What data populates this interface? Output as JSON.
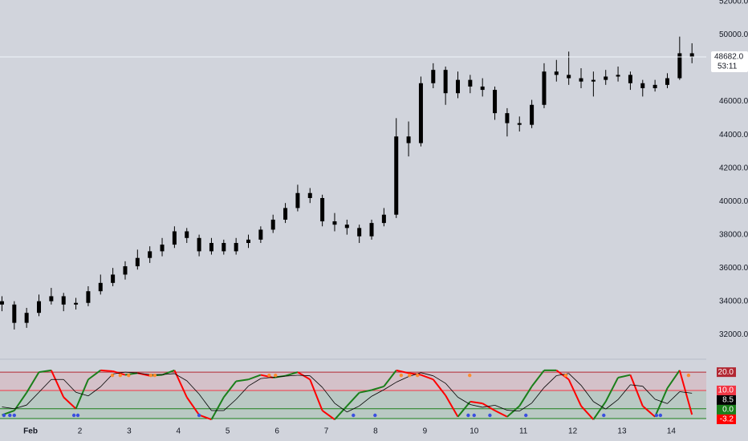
{
  "chart_data": [
    {
      "type": "candlestick",
      "x": [
        0.42,
        0.67,
        0.92,
        1.17,
        1.42,
        1.67,
        1.92,
        2.17,
        2.42,
        2.67,
        2.92,
        3.17,
        3.42,
        3.67,
        3.92,
        4.17,
        4.42,
        4.67,
        4.92,
        5.17,
        5.42,
        5.67,
        5.92,
        6.17,
        6.42,
        6.67,
        6.92,
        7.17,
        7.42,
        7.67,
        7.92,
        8.17,
        8.42,
        8.67,
        8.92,
        9.17,
        9.42,
        9.67,
        9.92,
        10.17,
        10.42,
        10.67,
        10.92,
        11.17,
        11.42,
        11.67,
        11.92,
        12.17,
        12.42,
        12.67,
        12.92,
        13.17,
        13.42,
        13.67,
        13.92,
        14.17,
        14.42
      ],
      "open": [
        34000,
        33800,
        32700,
        33300,
        34000,
        34300,
        33800,
        33900,
        34600,
        35100,
        35600,
        36100,
        36600,
        37000,
        37400,
        38200,
        37800,
        37000,
        37500,
        37000,
        37500,
        37700,
        38300,
        38900,
        39600,
        40500,
        40200,
        38800,
        38600,
        38400,
        37900,
        38700,
        39200,
        43900,
        43500,
        47100,
        47900,
        46500,
        47300,
        46900,
        46700,
        45300,
        44700,
        44600,
        45800,
        47800,
        47600,
        47400,
        47200,
        47300,
        47500,
        47600,
        47100,
        46800,
        47000,
        47400,
        48900
      ],
      "high": [
        34300,
        34000,
        33600,
        34400,
        34800,
        34500,
        34200,
        34900,
        35600,
        36000,
        36400,
        37100,
        37300,
        37800,
        38500,
        38400,
        38000,
        37800,
        37700,
        37800,
        38000,
        38500,
        39200,
        39900,
        41000,
        40800,
        40400,
        39300,
        38900,
        38600,
        38900,
        39600,
        45000,
        44800,
        47500,
        48300,
        48100,
        47800,
        47600,
        47400,
        46900,
        45600,
        45100,
        46100,
        48300,
        48500,
        49000,
        48000,
        47800,
        47900,
        48100,
        47800,
        47300,
        47300,
        47700,
        49900,
        49500
      ],
      "low": [
        33400,
        32300,
        32400,
        33100,
        33800,
        33400,
        33500,
        33700,
        34400,
        34900,
        35300,
        35900,
        36300,
        36700,
        37200,
        37500,
        36700,
        36800,
        36800,
        36800,
        37200,
        37500,
        38100,
        38700,
        39400,
        39900,
        38500,
        38200,
        38000,
        37500,
        37700,
        38500,
        39000,
        42700,
        43300,
        46800,
        45800,
        46200,
        46500,
        46300,
        44900,
        43900,
        44200,
        44400,
        45600,
        47200,
        47000,
        46800,
        46300,
        47000,
        47200,
        46700,
        46300,
        46600,
        46800,
        47300,
        48300
      ],
      "close": [
        33800,
        32700,
        33300,
        34000,
        34300,
        33800,
        33900,
        34600,
        35100,
        35600,
        36100,
        36600,
        37000,
        37400,
        38200,
        37800,
        37000,
        37500,
        37000,
        37500,
        37700,
        38300,
        38900,
        39600,
        40500,
        40200,
        38800,
        38600,
        38400,
        37900,
        38700,
        39200,
        43900,
        43500,
        47100,
        47900,
        46500,
        47300,
        46900,
        46700,
        45300,
        44700,
        44600,
        45800,
        47800,
        47600,
        47400,
        47200,
        47300,
        47500,
        47600,
        47100,
        46800,
        47000,
        47400,
        48900,
        48682
      ],
      "color": "#000000",
      "xlim": [
        0.38,
        14.71
      ],
      "ylim": [
        30900,
        52100
      ],
      "yticks": [
        {
          "value": 32000,
          "label": "32000.0"
        },
        {
          "value": 34000,
          "label": "34000.0"
        },
        {
          "value": 36000,
          "label": "36000.0"
        },
        {
          "value": 38000,
          "label": "38000.0"
        },
        {
          "value": 40000,
          "label": "40000.0"
        },
        {
          "value": 42000,
          "label": "42000.0"
        },
        {
          "value": 44000,
          "label": "44000.0"
        },
        {
          "value": 46000,
          "label": "46000.0"
        },
        {
          "value": 48000,
          "label": "48000.0"
        },
        {
          "value": 50000,
          "label": "50000.0"
        },
        {
          "value": 52000,
          "label": "52000.0"
        }
      ],
      "xticks": [
        {
          "value": 1,
          "label": "Feb"
        },
        2,
        3,
        4,
        5,
        6,
        7,
        8,
        9,
        10,
        11,
        12,
        13,
        14
      ],
      "last_price": {
        "value": 48682,
        "label": "48682.0"
      },
      "countdown": "53:11"
    },
    {
      "type": "line",
      "x": [
        0.42,
        0.67,
        0.92,
        1.17,
        1.42,
        1.67,
        1.92,
        2.17,
        2.42,
        2.67,
        2.92,
        3.17,
        3.42,
        3.67,
        3.92,
        4.17,
        4.42,
        4.67,
        4.92,
        5.17,
        5.42,
        5.67,
        5.92,
        6.17,
        6.42,
        6.67,
        6.92,
        7.17,
        7.42,
        7.67,
        7.92,
        8.17,
        8.42,
        8.67,
        8.92,
        9.17,
        9.42,
        9.67,
        9.92,
        10.17,
        10.42,
        10.67,
        10.92,
        11.17,
        11.42,
        11.67,
        11.92,
        12.17,
        12.42,
        12.67,
        12.92,
        13.17,
        13.42,
        13.67,
        13.92,
        14.17,
        14.42
      ],
      "series": [
        {
          "color": "#ff0000",
          "up_color": "#1a7f1a",
          "down_color": "#ff0000",
          "values": [
            -3.4,
            -1,
            8.8,
            20,
            21,
            6.3,
            0,
            16,
            21,
            20.5,
            18.5,
            19.5,
            18,
            18.5,
            21,
            6.3,
            -3.4,
            -5.9,
            6.3,
            15,
            16,
            18.5,
            17,
            18,
            20,
            16,
            -1,
            -5.9,
            1.5,
            8.8,
            10.2,
            12.2,
            21,
            19.5,
            18.5,
            16,
            7.3,
            -4.4,
            3.9,
            2.9,
            -1,
            -4.4,
            1.5,
            12.2,
            21,
            21,
            16,
            1.5,
            -5.9,
            3.9,
            17,
            18.5,
            1.5,
            -4.4,
            11.2,
            21,
            -3.2
          ]
        },
        {
          "color": "#000000",
          "values": [
            1,
            0,
            2,
            9,
            16,
            16,
            9,
            7,
            12,
            19,
            20,
            19.5,
            18.7,
            18.7,
            19.2,
            15.3,
            8,
            -1,
            -1,
            5.1,
            12.4,
            16.5,
            17.2,
            17.8,
            18.3,
            18,
            11.7,
            3,
            -1.8,
            1.5,
            6.8,
            10.4,
            14.5,
            17.6,
            19.7,
            18,
            13.9,
            6.3,
            2.3,
            0.8,
            1.9,
            -0.8,
            -1.3,
            3.1,
            11.6,
            18.1,
            19.3,
            12.8,
            3.9,
            -0.2,
            5,
            13.1,
            12.3,
            5.2,
            2.8,
            9.3,
            8.5
          ]
        }
      ],
      "xlim": [
        0.38,
        14.71
      ],
      "ylim": [
        -8,
        24
      ],
      "yticks": [
        {
          "value": 20,
          "label": "20.0"
        },
        {
          "value": 10,
          "label": "10.0"
        },
        {
          "value": 0,
          "label": "0.0"
        }
      ],
      "level_colors": [
        "#b22833",
        "#f23645",
        "#1a7f1a"
      ],
      "overbought_x": [
        2.66,
        2.82,
        2.99,
        3.44,
        3.52,
        5.84,
        5.97,
        8.52,
        8.69,
        8.85,
        9.91,
        11.86,
        14.35
      ],
      "oversold_x": [
        0.46,
        0.58,
        0.67,
        1.88,
        1.96,
        4.42,
        7.55,
        7.99,
        9.88,
        10.0,
        10.32,
        11.05,
        12.63,
        13.7,
        13.78
      ],
      "overbought_color": "#ff8c2f",
      "oversold_color": "#3a4fe0"
    }
  ]
}
